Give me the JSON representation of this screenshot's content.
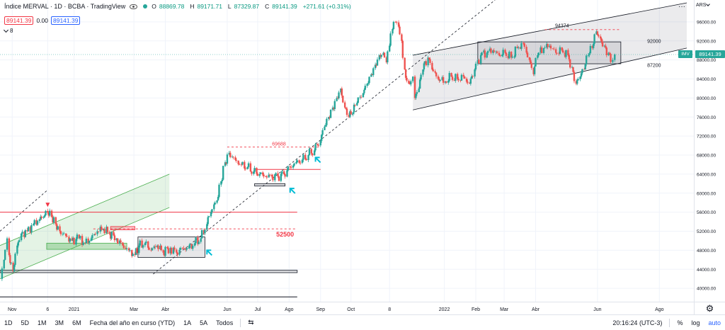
{
  "legend": {
    "title": "Índice MERVAL · 1D · BCBA · TradingView",
    "open_key": "O",
    "open": "88869.78",
    "high_key": "H",
    "high": "89171.71",
    "low_key": "L",
    "low": "87329.87",
    "close_key": "C",
    "close": "89141.39",
    "change": "+271.61 (+0.31%)",
    "sell_price": "89141.39",
    "spread": "0.00",
    "buy_price": "89141.39",
    "indicator_count": "8",
    "currency": "ARS",
    "menu_dots": "···"
  },
  "chart_data": {
    "type": "line",
    "title": "Índice MERVAL · 1D · BCBA",
    "xlabel": "",
    "ylabel": "",
    "x_tick_labels": [
      "Nov",
      "6",
      "2021",
      "Mar",
      "Abr",
      "Jun",
      "Jul",
      "Ago",
      "Sep",
      "Oct",
      "8",
      "2022",
      "Feb",
      "Mar",
      "Abr",
      "Jun",
      "Ago"
    ],
    "y_tick_labels": [
      "96000.00",
      "92000.00",
      "88000.00",
      "84000.00",
      "80000.00",
      "76000.00",
      "72000.00",
      "68000.00",
      "64000.00",
      "60000.00",
      "56000.00",
      "52000.00",
      "48000.00",
      "44000.00",
      "40000.00"
    ],
    "ylim": [
      37200,
      100600
    ],
    "grid": true,
    "series": [
      {
        "values_by_date": [
          [
            "2020-10-21",
            42000
          ],
          [
            "2020-10-24",
            46000
          ],
          [
            "2020-10-27",
            50500
          ],
          [
            "2020-10-29",
            47000
          ],
          [
            "2020-11-02",
            43500
          ],
          [
            "2020-11-06",
            49000
          ],
          [
            "2020-11-10",
            51500
          ],
          [
            "2020-11-16",
            52000
          ],
          [
            "2020-11-22",
            53500
          ],
          [
            "2020-11-28",
            54500
          ],
          [
            "2020-12-02",
            55000
          ],
          [
            "2020-12-06",
            56000
          ],
          [
            "2020-12-10",
            55000
          ],
          [
            "2020-12-14",
            53500
          ],
          [
            "2020-12-18",
            52000
          ],
          [
            "2020-12-24",
            51000
          ],
          [
            "2020-12-30",
            50000
          ],
          [
            "2021-01-06",
            50500
          ],
          [
            "2021-01-12",
            49500
          ],
          [
            "2021-01-18",
            50500
          ],
          [
            "2021-01-24",
            52000
          ],
          [
            "2021-01-30",
            52500
          ],
          [
            "2021-02-05",
            51500
          ],
          [
            "2021-02-12",
            50500
          ],
          [
            "2021-02-18",
            49000
          ],
          [
            "2021-02-24",
            48000
          ],
          [
            "2021-03-02",
            47000
          ],
          [
            "2021-03-06",
            49000
          ],
          [
            "2021-03-12",
            49500
          ],
          [
            "2021-03-18",
            48000
          ],
          [
            "2021-03-24",
            49000
          ],
          [
            "2021-03-30",
            47500
          ],
          [
            "2021-04-06",
            48500
          ],
          [
            "2021-04-12",
            47500
          ],
          [
            "2021-04-18",
            48500
          ],
          [
            "2021-04-24",
            48500
          ],
          [
            "2021-04-30",
            49500
          ],
          [
            "2021-05-06",
            50500
          ],
          [
            "2021-05-12",
            53500
          ],
          [
            "2021-05-16",
            56000
          ],
          [
            "2021-05-22",
            58500
          ],
          [
            "2021-05-26",
            62500
          ],
          [
            "2021-05-30",
            66500
          ],
          [
            "2021-06-03",
            68500
          ],
          [
            "2021-06-09",
            67000
          ],
          [
            "2021-06-15",
            66000
          ],
          [
            "2021-06-21",
            65500
          ],
          [
            "2021-06-27",
            64500
          ],
          [
            "2021-07-03",
            64000
          ],
          [
            "2021-07-09",
            63500
          ],
          [
            "2021-07-15",
            63500
          ],
          [
            "2021-07-21",
            63500
          ],
          [
            "2021-07-27",
            64000
          ],
          [
            "2021-08-02",
            65500
          ],
          [
            "2021-08-08",
            66500
          ],
          [
            "2021-08-14",
            67000
          ],
          [
            "2021-08-20",
            68000
          ],
          [
            "2021-08-26",
            69000
          ],
          [
            "2021-09-01",
            71000
          ],
          [
            "2021-09-05",
            74000
          ],
          [
            "2021-09-09",
            76000
          ],
          [
            "2021-09-13",
            78000
          ],
          [
            "2021-09-17",
            80000
          ],
          [
            "2021-09-21",
            82000
          ],
          [
            "2021-09-25",
            78000
          ],
          [
            "2021-09-29",
            76000
          ],
          [
            "2021-10-03",
            77000
          ],
          [
            "2021-10-07",
            79000
          ],
          [
            "2021-10-13",
            81000
          ],
          [
            "2021-10-17",
            83000
          ],
          [
            "2021-10-21",
            85000
          ],
          [
            "2021-10-25",
            87000
          ],
          [
            "2021-10-29",
            89000
          ],
          [
            "2021-11-02",
            89500
          ],
          [
            "2021-11-05",
            87500
          ],
          [
            "2021-11-08",
            91000
          ],
          [
            "2021-11-11",
            94500
          ],
          [
            "2021-11-14",
            96000
          ],
          [
            "2021-11-17",
            95000
          ],
          [
            "2021-11-20",
            92000
          ],
          [
            "2021-11-23",
            86000
          ],
          [
            "2021-11-27",
            83000
          ],
          [
            "2021-12-01",
            84500
          ],
          [
            "2021-12-03",
            80000
          ],
          [
            "2021-12-07",
            82000
          ],
          [
            "2021-12-11",
            86000
          ],
          [
            "2021-12-16",
            88500
          ],
          [
            "2021-12-20",
            86000
          ],
          [
            "2021-12-26",
            84000
          ],
          [
            "2022-01-02",
            83500
          ],
          [
            "2022-01-08",
            84500
          ],
          [
            "2022-01-14",
            84000
          ],
          [
            "2022-01-20",
            84500
          ],
          [
            "2022-01-26",
            83000
          ],
          [
            "2022-01-31",
            86000
          ],
          [
            "2022-02-06",
            89000
          ],
          [
            "2022-02-12",
            89500
          ],
          [
            "2022-02-18",
            90000
          ],
          [
            "2022-02-24",
            89000
          ],
          [
            "2022-03-02",
            89500
          ],
          [
            "2022-03-08",
            88500
          ],
          [
            "2022-03-14",
            90500
          ],
          [
            "2022-03-20",
            91500
          ],
          [
            "2022-03-26",
            88000
          ],
          [
            "2022-03-30",
            85000
          ],
          [
            "2022-04-03",
            89000
          ],
          [
            "2022-04-09",
            90500
          ],
          [
            "2022-04-15",
            91000
          ],
          [
            "2022-04-21",
            89500
          ],
          [
            "2022-04-27",
            90000
          ],
          [
            "2022-05-03",
            89000
          ],
          [
            "2022-05-07",
            86500
          ],
          [
            "2022-05-11",
            83000
          ],
          [
            "2022-05-15",
            84500
          ],
          [
            "2022-05-19",
            86000
          ],
          [
            "2022-05-23",
            89000
          ],
          [
            "2022-05-27",
            90500
          ],
          [
            "2022-05-31",
            94000
          ],
          [
            "2022-06-04",
            92500
          ],
          [
            "2022-06-08",
            91000
          ],
          [
            "2022-06-12",
            89500
          ],
          [
            "2022-06-16",
            88000
          ],
          [
            "2022-06-18",
            89141
          ]
        ]
      }
    ],
    "annotations": {
      "hlines": [
        {
          "label": "52500",
          "price": 52500
        },
        {
          "label": "69688",
          "price": 69688
        },
        {
          "label": "94374",
          "price": 94374
        },
        {
          "label": "92000",
          "price": 92000
        },
        {
          "label": "87200",
          "price": 87200
        }
      ],
      "last_price_label": "89141.39",
      "symbol_tag": "IMV"
    }
  },
  "time_axis": {
    "labels": [
      "Nov",
      "6",
      "2021",
      "Mar",
      "Abr",
      "Jun",
      "Jul",
      "Ago",
      "Sep",
      "Oct",
      "8",
      "2022",
      "Feb",
      "Mar",
      "Abr",
      "Jun",
      "Ago"
    ]
  },
  "bottom_bar": {
    "ranges": [
      "1D",
      "5D",
      "1M",
      "3M",
      "6M",
      "Fecha del año en curso (YTD)",
      "1A",
      "5A",
      "Todos"
    ],
    "compare_icon": "compare-icon",
    "clock": "20:16:24 (UTC-3)",
    "percent": "%",
    "log": "log",
    "auto": "auto"
  },
  "axis_corner": {
    "icon": "settings-gear-icon",
    "glyph": "⚙"
  },
  "colors": {
    "up": "#26a69a",
    "down": "#ef5350",
    "grid": "#f0f3fa",
    "trendline": "#131722",
    "channel_fill": "rgba(120,123,134,0.15)",
    "green_channel": "rgba(76,175,80,0.15)",
    "red_line": "#f23645",
    "accent": "#2962ff"
  }
}
